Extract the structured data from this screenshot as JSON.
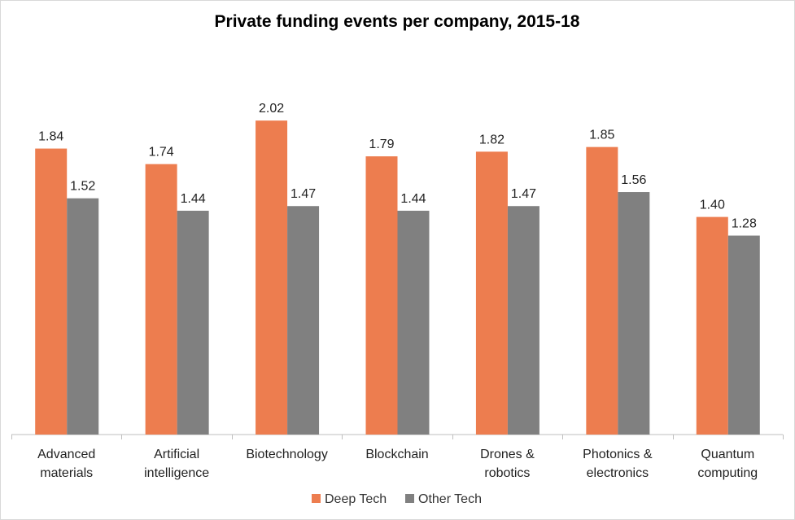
{
  "chart_data": {
    "type": "bar",
    "title": "Private funding events per company, 2015-18",
    "xlabel": "",
    "ylabel": "",
    "ylim": [
      0,
      2.2
    ],
    "grid": false,
    "legend_position": "bottom",
    "categories": [
      [
        "Advanced",
        "materials"
      ],
      [
        "Artificial",
        "intelligence"
      ],
      [
        "Biotechnology"
      ],
      [
        "Blockchain"
      ],
      [
        "Drones &",
        "robotics"
      ],
      [
        "Photonics &",
        "electronics"
      ],
      [
        "Quantum",
        "computing"
      ]
    ],
    "series": [
      {
        "name": "Deep Tech",
        "color": "#ed7d4f",
        "values": [
          1.84,
          1.74,
          2.02,
          1.79,
          1.82,
          1.85,
          1.4
        ]
      },
      {
        "name": "Other Tech",
        "color": "#808080",
        "values": [
          1.52,
          1.44,
          1.47,
          1.44,
          1.47,
          1.56,
          1.28
        ]
      }
    ]
  }
}
